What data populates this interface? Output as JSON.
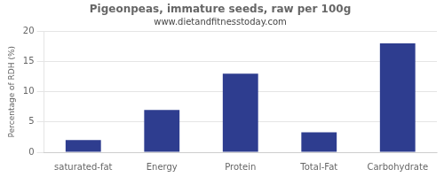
{
  "chart_data": {
    "type": "bar",
    "title": "Pigeonpeas, immature seeds, raw per 100g",
    "subtitle": "www.dietandfitnesstoday.com",
    "categories": [
      "saturated-fat",
      "Energy",
      "Protein",
      "Total-Fat",
      "Carbohydrate"
    ],
    "values": [
      2,
      7,
      13,
      3.3,
      18
    ],
    "color": "#2e3d8f",
    "ylabel": "Percentage of RDH (%)",
    "ylim": [
      0,
      20
    ],
    "yticks": [
      0,
      5,
      10,
      15,
      20
    ],
    "grid": true
  }
}
